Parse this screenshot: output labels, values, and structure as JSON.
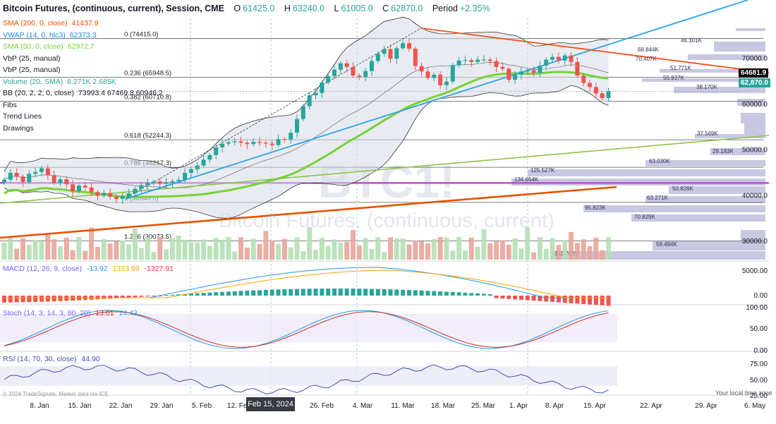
{
  "header": {
    "title": "Bitcoin Futures, (continuous, current), Session, CME",
    "open_label": "O",
    "open": "61425.0",
    "high_label": "H",
    "high": "63240.0",
    "low_label": "L",
    "low": "61005.0",
    "close_label": "C",
    "close": "62870.0",
    "period_label": "Period",
    "period": "+2.35%"
  },
  "indicators": [
    {
      "name": "SMA (200, 0, close)",
      "value": "41437.9",
      "color": "#e65100"
    },
    {
      "name": "VWAP (14, 0, hlc3)",
      "value": "62373.3",
      "color": "#1e88e5"
    },
    {
      "name": "SMA (50, 0, close)",
      "value": "62972.7",
      "color": "#76d235"
    },
    {
      "name": "VbP (25, manual)",
      "value": "",
      "color": "#131722"
    },
    {
      "name": "VbP (25, manual)",
      "value": "",
      "color": "#131722"
    },
    {
      "name": "Volume (20, SMA)",
      "value": "8.271K 2.685K",
      "color": "#26a69a"
    },
    {
      "name": "BB (20, 2, 2, 0, close)",
      "value": "73993.4 67469.8 60946.2",
      "color": "#131722"
    },
    {
      "name": "Fibs",
      "value": "",
      "color": "#131722"
    },
    {
      "name": "Trend Lines",
      "value": "",
      "color": "#131722"
    },
    {
      "name": "Drawings",
      "value": "",
      "color": "#131722"
    }
  ],
  "fib_levels": [
    {
      "label": "0 (74415.0)",
      "price": 74415
    },
    {
      "label": "0.236 (65948.5)",
      "price": 65948.5
    },
    {
      "label": "0.382 (60710.8)",
      "price": 60710.8
    },
    {
      "label": "0.618 (52244.3)",
      "price": 52244.3
    },
    {
      "label": "0.786 (46217.3)",
      "price": 46217.3
    },
    {
      "label": "1 (38540.0)",
      "price": 38540
    },
    {
      "label": "1.236 (30073.5)",
      "price": 30073.5
    }
  ],
  "vbp_labels": [
    "46.301K",
    "68.844K",
    "70.407K",
    "51.771K",
    "55.937K",
    "38.170K",
    "37.569K",
    "29.183K",
    "63.030K",
    "125.527K",
    "134.654K",
    "50.828K",
    "63.271K",
    "95.823K",
    "70.829K",
    "59.494K",
    "113.702K"
  ],
  "price_axis": {
    "ticks": [
      "70000.0",
      "60000.0",
      "50000.0",
      "40000.0",
      "30000.0"
    ],
    "tag_upper": "64681.9",
    "tag_last": "62,870.0"
  },
  "date_axis": [
    "8. Jan",
    "15. Jan",
    "22. Jan",
    "29. Jan",
    "5. Feb",
    "12. Feb",
    "26. Feb",
    "4. Mar",
    "11. Mar",
    "18. Mar",
    "25. Mar",
    "1. Apr",
    "8. Apr",
    "15. Apr",
    "22. Apr",
    "29. Apr",
    "6. May"
  ],
  "crosshair_date": "Feb 15, 2024",
  "watermark": {
    "symbol": "BTC1!",
    "desc": "Bitcoin Futures, (continuous, current)"
  },
  "macd": {
    "label": "MACD (12, 26, 9, close)",
    "v1": "-13.92",
    "v2": "1313.99",
    "v3": "-1327.91",
    "ticks": [
      "5000.00",
      "0.00"
    ]
  },
  "stoch": {
    "label": "Stoch (14, 3, 14, 3, 80, 20)",
    "v1": "13.01",
    "v2": "14.43",
    "ticks": [
      "100.00",
      "50.00",
      "0.00"
    ]
  },
  "rsi": {
    "label": "RSI (14, 70, 30, close)",
    "v1": "44.90",
    "ticks": [
      "75.00",
      "50.00",
      "25.00"
    ]
  },
  "footer": {
    "copyright": "© 2024 TradeSignals. Market data via ICE",
    "timezone": "Your local time zone"
  },
  "chart_data": {
    "type": "candlestick",
    "y_range": [
      26000,
      79000
    ],
    "closes": [
      43500,
      45000,
      44200,
      43000,
      44800,
      45200,
      46000,
      44500,
      42800,
      43600,
      42500,
      41000,
      42200,
      41800,
      40800,
      40000,
      40600,
      39800,
      39300,
      39900,
      40500,
      41500,
      42300,
      42800,
      43100,
      42600,
      42900,
      43200,
      43500,
      45000,
      45800,
      46600,
      47900,
      48900,
      50600,
      51400,
      51700,
      51900,
      51600,
      51300,
      51800,
      51600,
      51400,
      51100,
      52400,
      52300,
      53800,
      56800,
      59600,
      62000,
      62500,
      64800,
      66200,
      67600,
      69000,
      68200,
      66300,
      66000,
      67300,
      69500,
      71100,
      72100,
      70000,
      72300,
      73400,
      72200,
      68400,
      67200,
      65800,
      66500,
      64200,
      65000,
      68600,
      69600,
      69700,
      69300,
      69800,
      69800,
      69500,
      68200,
      67800,
      65400,
      66500,
      67200,
      67500,
      66900,
      68500,
      69800,
      70400,
      69600,
      70700,
      69300,
      66300,
      64700,
      63800,
      62400,
      61400,
      62870
    ]
  }
}
